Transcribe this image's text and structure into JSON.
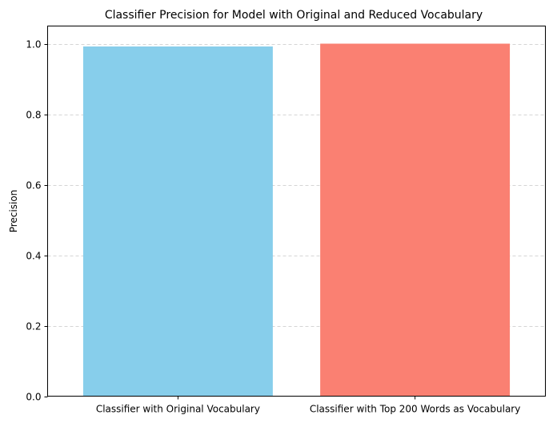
{
  "chart_data": {
    "type": "bar",
    "title": "Classifier Precision for Model with Original and Reduced Vocabulary",
    "xlabel": "",
    "ylabel": "Precision",
    "categories": [
      "Classifier with Original Vocabulary",
      "Classifier with Top 200 Words as Vocabulary"
    ],
    "values": [
      0.992,
      1.0
    ],
    "colors": [
      "#87ceeb",
      "#fa8072"
    ],
    "ylim": [
      0,
      1.05
    ],
    "yticks": [
      0.0,
      0.2,
      0.4,
      0.6,
      0.8,
      1.0
    ],
    "ytick_labels": [
      "0.0",
      "0.2",
      "0.4",
      "0.6",
      "0.8",
      "1.0"
    ],
    "grid": "y-dashed",
    "legend": "none"
  }
}
